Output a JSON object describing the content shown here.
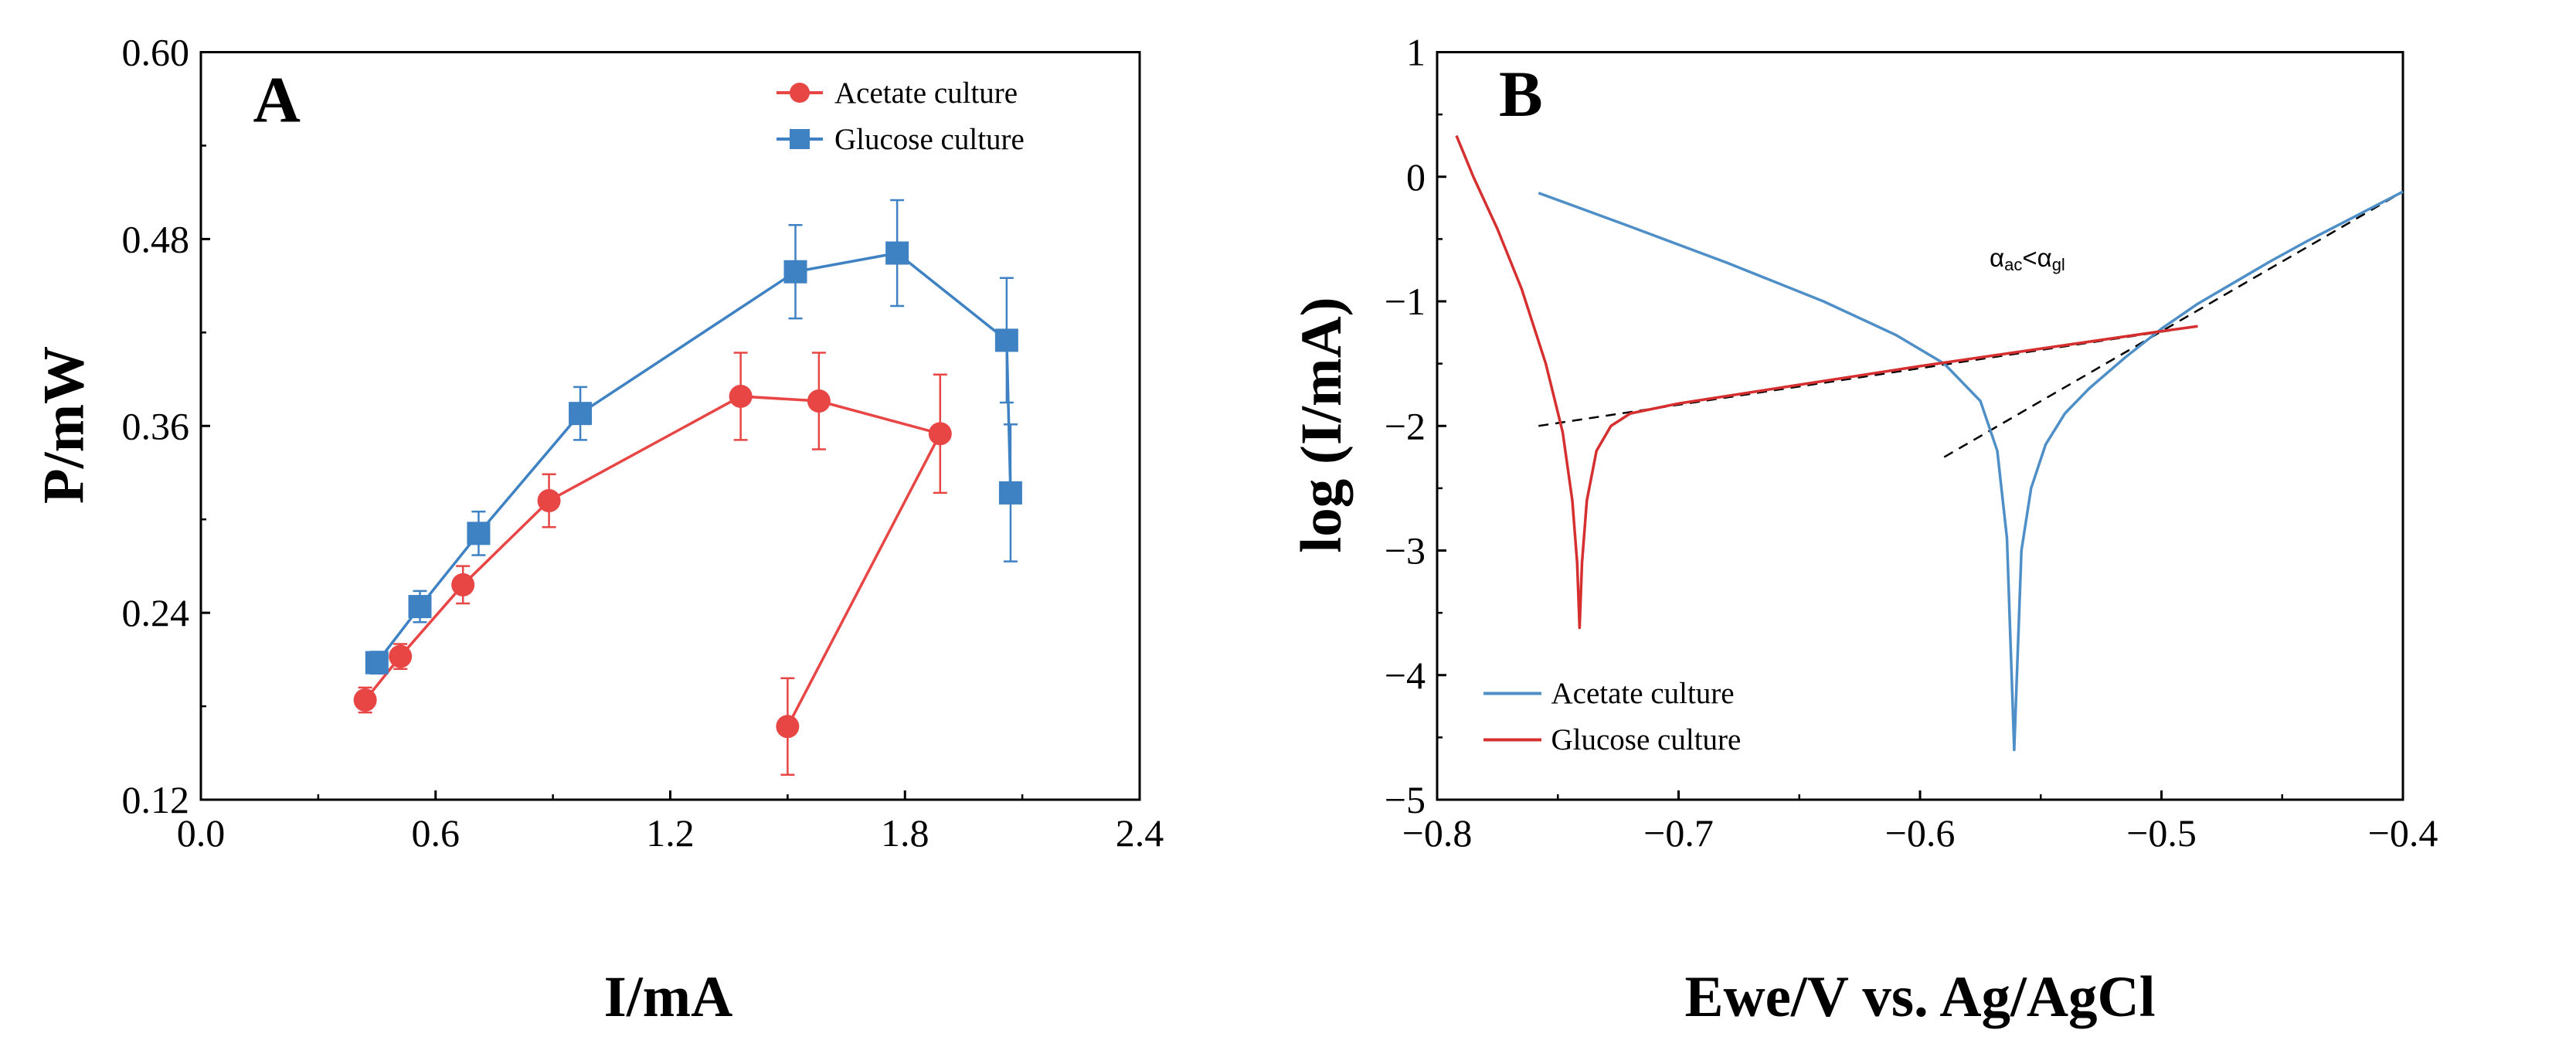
{
  "colors": {
    "acetate": "#e84545",
    "glucose": "#3f82c4",
    "fit": "#000000",
    "axis": "#000000"
  },
  "chart_data": [
    {
      "type": "line",
      "panel_label": "A",
      "xlabel": "I/mA",
      "ylabel": "P/mW",
      "xlim": [
        0.0,
        2.4
      ],
      "ylim": [
        0.12,
        0.6
      ],
      "xticks": [
        "0.0",
        "0.6",
        "1.2",
        "1.8",
        "2.4"
      ],
      "yticks": [
        "0.12",
        "0.24",
        "0.36",
        "0.48",
        "0.60"
      ],
      "legend_position": "top-right",
      "series": [
        {
          "name": "Acetate culture",
          "color_key": "acetate",
          "marker": "circle",
          "points": [
            {
              "x": 0.42,
              "y": 0.184,
              "err": 0.008
            },
            {
              "x": 0.51,
              "y": 0.212,
              "err": 0.008
            },
            {
              "x": 0.67,
              "y": 0.258,
              "err": 0.012
            },
            {
              "x": 0.89,
              "y": 0.312,
              "err": 0.017
            },
            {
              "x": 1.38,
              "y": 0.379,
              "err": 0.028
            },
            {
              "x": 1.58,
              "y": 0.376,
              "err": 0.031
            },
            {
              "x": 1.89,
              "y": 0.355,
              "err": 0.038
            },
            {
              "x": 1.5,
              "y": 0.167,
              "err": 0.031
            }
          ]
        },
        {
          "name": "Glucose culture",
          "color_key": "glucose",
          "marker": "square",
          "points": [
            {
              "x": 0.45,
              "y": 0.208,
              "err": 0.007
            },
            {
              "x": 0.56,
              "y": 0.244,
              "err": 0.01
            },
            {
              "x": 0.71,
              "y": 0.291,
              "err": 0.014
            },
            {
              "x": 0.97,
              "y": 0.368,
              "err": 0.017
            },
            {
              "x": 1.52,
              "y": 0.459,
              "err": 0.03
            },
            {
              "x": 1.78,
              "y": 0.471,
              "err": 0.034
            },
            {
              "x": 2.06,
              "y": 0.415,
              "err": 0.04
            },
            {
              "x": 2.07,
              "y": 0.317,
              "err": 0.044
            }
          ]
        }
      ]
    },
    {
      "type": "line",
      "panel_label": "B",
      "xlabel": "Ewe/V vs. Ag/AgCl",
      "ylabel": "log (I/mA)",
      "xlim": [
        -0.8,
        -0.4
      ],
      "ylim": [
        -5,
        1
      ],
      "xticks": [
        "−0.8",
        "−0.7",
        "−0.6",
        "−0.5",
        "−0.4"
      ],
      "yticks": [
        "−5",
        "−4",
        "−3",
        "−2",
        "−1",
        "0",
        "1"
      ],
      "legend_position": "bottom-left",
      "annotation": {
        "text": "α",
        "sub1": "ac",
        "mid": "<α",
        "sub2": "gl",
        "x": -0.535,
        "y": -0.63
      },
      "series": [
        {
          "name": "Acetate culture",
          "color_key": "acetate_b",
          "color": "#4f8fc7",
          "x": [
            -0.758,
            -0.72,
            -0.68,
            -0.64,
            -0.61,
            -0.59,
            -0.575,
            -0.568,
            -0.564,
            -0.561,
            -0.558,
            -0.554,
            -0.548,
            -0.54,
            -0.53,
            -0.515,
            -0.5,
            -0.485,
            -0.47,
            -0.455,
            -0.44,
            -0.425,
            -0.41,
            -0.4
          ],
          "y": [
            -0.13,
            -0.4,
            -0.69,
            -1.0,
            -1.27,
            -1.5,
            -1.8,
            -2.2,
            -2.9,
            -4.6,
            -3.0,
            -2.5,
            -2.15,
            -1.9,
            -1.7,
            -1.45,
            -1.22,
            -1.02,
            -0.85,
            -0.68,
            -0.52,
            -0.37,
            -0.22,
            -0.12
          ]
        },
        {
          "name": "Glucose culture",
          "color_key": "glucose_b",
          "color": "#d62f2f",
          "x": [
            -0.792,
            -0.785,
            -0.775,
            -0.765,
            -0.755,
            -0.748,
            -0.744,
            -0.742,
            -0.741,
            -0.74,
            -0.738,
            -0.734,
            -0.728,
            -0.72,
            -0.7,
            -0.65,
            -0.6,
            -0.55,
            -0.5,
            -0.485
          ],
          "y": [
            0.33,
            0.0,
            -0.42,
            -0.9,
            -1.5,
            -2.05,
            -2.6,
            -3.1,
            -3.62,
            -3.1,
            -2.6,
            -2.2,
            -2.0,
            -1.9,
            -1.82,
            -1.67,
            -1.52,
            -1.38,
            -1.24,
            -1.2
          ]
        }
      ],
      "fit_lines": [
        {
          "x": [
            -0.758,
            -0.485
          ],
          "y": [
            -2.0,
            -1.2
          ]
        },
        {
          "x": [
            -0.59,
            -0.4
          ],
          "y": [
            -2.25,
            -0.12
          ]
        }
      ]
    }
  ]
}
